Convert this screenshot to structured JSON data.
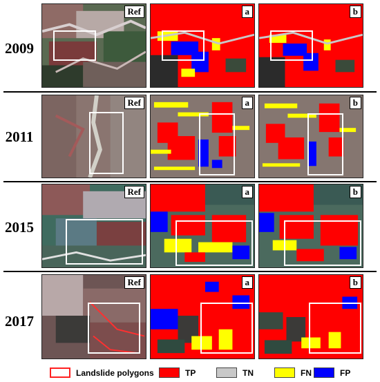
{
  "rows": [
    {
      "year": "2009"
    },
    {
      "year": "2011"
    },
    {
      "year": "2015"
    },
    {
      "year": "2017"
    }
  ],
  "panel_labels": {
    "ref": "Ref",
    "a": "a",
    "b": "b"
  },
  "legend": {
    "polygon_label": "Landslide polygons",
    "tp_label": "TP",
    "tn_label": "TN",
    "fn_label": "FN",
    "fp_label": "FP"
  },
  "colors": {
    "tp": "#ff0000",
    "tn": "#c8c8c8",
    "fn": "#ffff00",
    "fp": "#0000ff",
    "polygon_outline": "#ff2020",
    "roi_box": "#ffffff"
  }
}
